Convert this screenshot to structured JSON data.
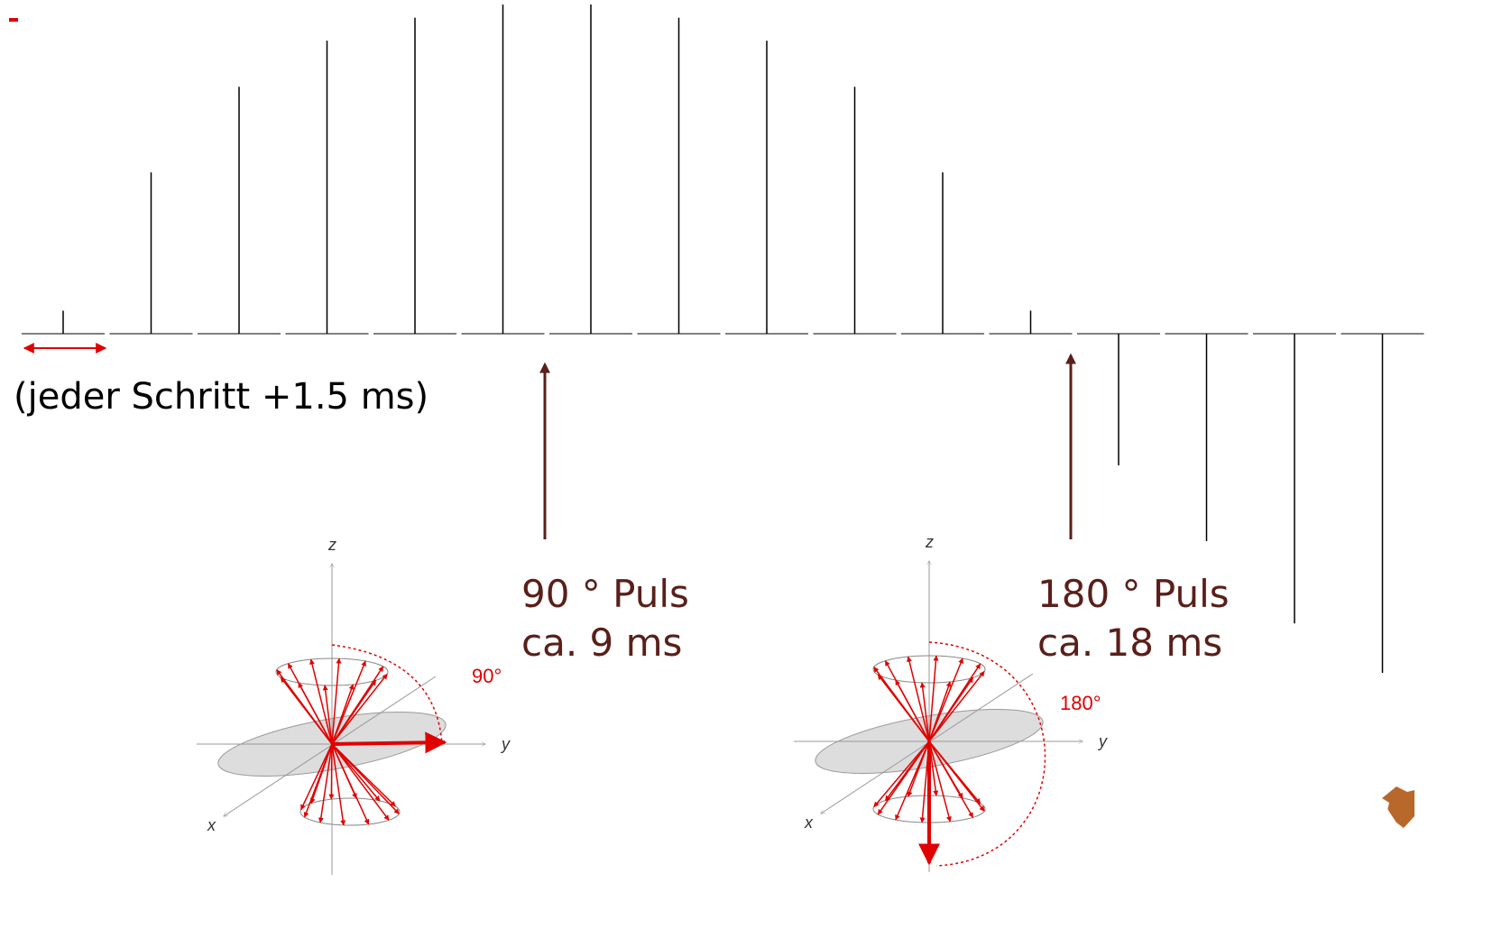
{
  "spectra": {
    "peaks": [
      7,
      49,
      75,
      89,
      96,
      100,
      100,
      96,
      89,
      75,
      49,
      7,
      -40,
      -63,
      -88,
      -103
    ]
  },
  "step_note": "(jeder Schritt +1.5 ms)",
  "pulse_90": {
    "title": "90 ° Puls",
    "time": "ca. 9 ms",
    "angle": "90°"
  },
  "pulse_180": {
    "title": "180 ° Puls",
    "time": "ca. 18 ms",
    "angle": "180°"
  },
  "axes": {
    "z": "z",
    "y": "y",
    "x": "x"
  }
}
